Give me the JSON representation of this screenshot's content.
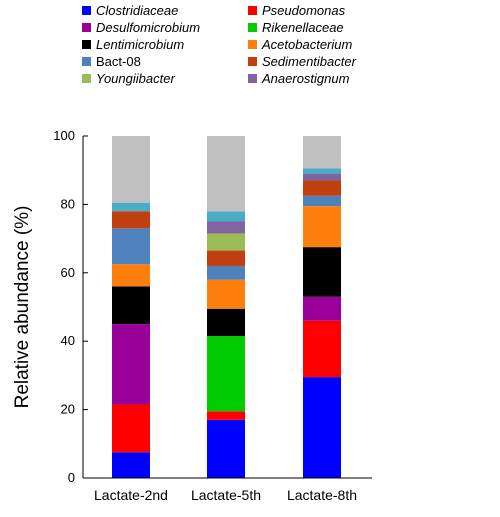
{
  "chart_data": {
    "type": "bar",
    "stacked": true,
    "categories": [
      "Lactate-2nd",
      "Lactate-5th",
      "Lactate-8th"
    ],
    "ylabel": "Relative abundance (%)",
    "xlabel": "",
    "ylim": [
      0,
      100
    ],
    "yticks": [
      0,
      20,
      40,
      60,
      80,
      100
    ],
    "legend_position": "top",
    "series": [
      {
        "name": "Clostridiaceae",
        "italic": true,
        "color": "#0000ff",
        "values": [
          7.5,
          17,
          29.5
        ]
      },
      {
        "name": "Pseudomonas",
        "italic": true,
        "color": "#ff0000",
        "values": [
          14,
          2.5,
          16.5
        ]
      },
      {
        "name": "Desulfomicrobium",
        "italic": true,
        "color": "#990099",
        "values": [
          23.5,
          0,
          7
        ]
      },
      {
        "name": "Rikenellaceae",
        "italic": true,
        "color": "#00cc00",
        "values": [
          0,
          22,
          0
        ]
      },
      {
        "name": "Lentimicrobium",
        "italic": true,
        "color": "#000000",
        "values": [
          11,
          8,
          14.5
        ]
      },
      {
        "name": "Acetobacterium",
        "italic": true,
        "color": "#ff7f0e",
        "values": [
          6.5,
          8.5,
          12
        ]
      },
      {
        "name": "Bact-08",
        "italic": false,
        "color": "#4f81bd",
        "values": [
          10.5,
          4,
          3
        ]
      },
      {
        "name": "Sedimentibacter",
        "italic": true,
        "color": "#c0400f",
        "values": [
          5,
          4.5,
          4.5
        ]
      },
      {
        "name": "Youngiibacter",
        "italic": true,
        "color": "#9bbb59",
        "values": [
          0,
          5,
          0
        ]
      },
      {
        "name": "Anaerostignum",
        "italic": true,
        "color": "#8064a2",
        "values": [
          0,
          3.5,
          2
        ]
      },
      {
        "name": "",
        "italic": false,
        "color": "#4bacc6",
        "values": [
          2.5,
          3,
          1.5
        ]
      },
      {
        "name": "",
        "italic": false,
        "color": "#c0c0c0",
        "values": [
          19.5,
          22,
          9.5
        ]
      }
    ]
  }
}
